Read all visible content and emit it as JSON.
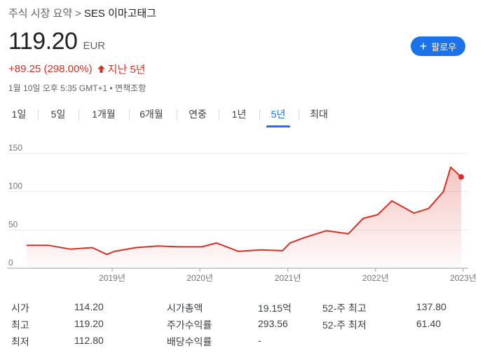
{
  "breadcrumb": {
    "root": "주식 시장 요약",
    "separator": ">",
    "current": "SES 이마고태그"
  },
  "quote": {
    "price": "119.20",
    "currency": "EUR",
    "change": "+89.25 (298.00%)",
    "period": "지난 5년",
    "timestamp": "1월 10일 오후 5:35 GMT+1 • 면책조항"
  },
  "follow_button": {
    "label": "팔로우",
    "icon": "plus-icon",
    "color": "#1a73e8"
  },
  "tabs": [
    "1일",
    "5일",
    "1개월",
    "6개월",
    "연중",
    "1년",
    "5년",
    "최대"
  ],
  "active_tab": "5년",
  "chart_data": {
    "type": "area",
    "color": "#d93025",
    "x_ticks": [
      "2019년",
      "2020년",
      "2021년",
      "2022년",
      "2023년"
    ],
    "y_ticks": [
      "150",
      "100",
      "50",
      "0"
    ],
    "ylim": [
      0,
      150
    ],
    "grid": true,
    "x": [
      "2018-01",
      "2018-04",
      "2018-07",
      "2018-10",
      "2018-12",
      "2019-01",
      "2019-04",
      "2019-07",
      "2019-10",
      "2020-01",
      "2020-03",
      "2020-06",
      "2020-09",
      "2020-12",
      "2021-01",
      "2021-03",
      "2021-06",
      "2021-09",
      "2021-11",
      "2022-01",
      "2022-03",
      "2022-06",
      "2022-08",
      "2022-10",
      "2022-11",
      "2023-01"
    ],
    "values": [
      30,
      30,
      25,
      27,
      18,
      22,
      27,
      29,
      28,
      28,
      33,
      22,
      24,
      23,
      33,
      40,
      49,
      45,
      65,
      70,
      88,
      72,
      78,
      100,
      132,
      119.2
    ]
  },
  "stats": [
    {
      "label": "시가",
      "value": "114.20"
    },
    {
      "label": "최고",
      "value": "119.20"
    },
    {
      "label": "최저",
      "value": "112.80"
    },
    {
      "label": "시가총액",
      "value": "19.15억"
    },
    {
      "label": "주가수익률",
      "value": "293.56"
    },
    {
      "label": "배당수익률",
      "value": "-"
    },
    {
      "label": "52-주 최고",
      "value": "137.80"
    },
    {
      "label": "52-주 최저",
      "value": "61.40"
    }
  ]
}
